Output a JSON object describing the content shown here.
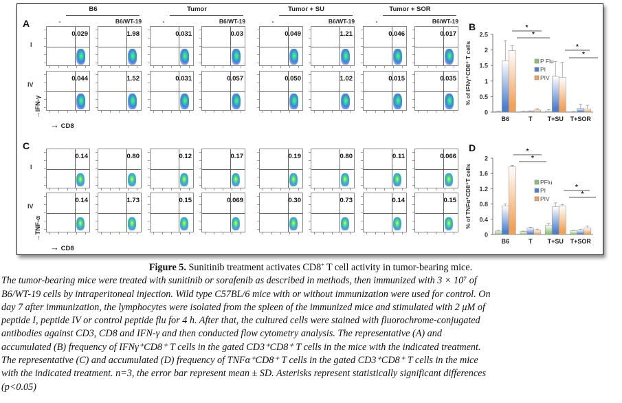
{
  "figure": {
    "panels": {
      "A": "A",
      "B": "B",
      "C": "C",
      "D": "D"
    },
    "groups": [
      {
        "label": "B6",
        "sub": [
          "-",
          "B6/WT-19"
        ]
      },
      {
        "label": "Tumor",
        "sub": [
          "-",
          "B6/WT-19"
        ]
      },
      {
        "label": "Tumor + SU",
        "sub": [
          "-",
          "B6/WT-19"
        ]
      },
      {
        "label": "Tumor + SOR",
        "sub": [
          "-",
          "B6/WT-19"
        ]
      }
    ],
    "row_labels": {
      "peptide_I": "I",
      "peptide_IV": "IV"
    },
    "flow_axes": {
      "x_label": "CD8",
      "y_label_A": "IFN-γ",
      "y_label_C": "TNF-α",
      "arrow": "→"
    },
    "flow_values": {
      "A_I": [
        "0.029",
        "1.98",
        "0.031",
        "0.03",
        "0.049",
        "1.21",
        "0.046",
        "0.017"
      ],
      "A_IV": [
        "0.044",
        "1.52",
        "0.031",
        "0.057",
        "0.050",
        "1.02",
        "0.015",
        "0.035"
      ],
      "C_I": [
        "0.14",
        "0.80",
        "0.12",
        "0.17",
        "0.19",
        "0.80",
        "0.11",
        "0.066"
      ],
      "C_IV": [
        "0.14",
        "1.73",
        "0.15",
        "0.069",
        "0.30",
        "0.73",
        "0.14",
        "0.15"
      ]
    }
  },
  "chart_data": [
    {
      "id": "B",
      "type": "bar",
      "title": "",
      "xlabel": "",
      "ylabel": "% of IFNγ⁺CD8⁺ T cells",
      "categories": [
        "B6",
        "T",
        "T+SU",
        "T+SOR"
      ],
      "ylim": [
        0,
        2.5
      ],
      "yticks": [
        0,
        0.5,
        1,
        1.5,
        2,
        2.5
      ],
      "ytick_labels": [
        "0",
        "0.5",
        "1",
        "1.5",
        "2",
        "2.5"
      ],
      "legend": {
        "placement": "center",
        "entries": [
          "P Flu",
          "PI",
          "PIV"
        ]
      },
      "series": [
        {
          "name": "P Flu",
          "color": "#8cc26a",
          "values": [
            0.02,
            0.02,
            0.03,
            0.01
          ],
          "errors": [
            0.01,
            0.01,
            0.05,
            0.01
          ]
        },
        {
          "name": "PI",
          "color": "#4a7fd0",
          "values": [
            1.65,
            0.03,
            1.15,
            0.12
          ],
          "errors": [
            0.65,
            0.01,
            0.48,
            0.13
          ]
        },
        {
          "name": "PIV",
          "color": "#f5a050",
          "values": [
            1.98,
            0.07,
            1.12,
            0.1
          ],
          "errors": [
            0.16,
            0.04,
            0.48,
            0.12
          ]
        }
      ],
      "significance": [
        {
          "from": "B6",
          "to": "T",
          "label": "*"
        },
        {
          "from": "B6",
          "to": "T",
          "label": "*"
        },
        {
          "from": "T+SU",
          "to": "T+SOR",
          "label": "*"
        },
        {
          "from": "T+SU",
          "to": "T+SOR",
          "label": "*"
        }
      ]
    },
    {
      "id": "D",
      "type": "bar",
      "title": "",
      "xlabel": "",
      "ylabel": "% of TNFα⁺CD8⁺T cells",
      "categories": [
        "B6",
        "T",
        "T+SU",
        "T+SOR"
      ],
      "ylim": [
        0,
        2
      ],
      "yticks": [
        0,
        0.4,
        0.8,
        1.2,
        1.6,
        2
      ],
      "ytick_labels": [
        "0",
        "0.4",
        "0.8",
        "1.2",
        "1.6",
        "2"
      ],
      "legend": {
        "placement": "center",
        "entries": [
          "PFlu",
          "PI",
          "PIV"
        ]
      },
      "series": [
        {
          "name": "PFlu",
          "color": "#8cc26a",
          "values": [
            0.09,
            0.08,
            0.24,
            0.1
          ],
          "errors": [
            0.02,
            0.01,
            0.06,
            0.01
          ]
        },
        {
          "name": "PI",
          "color": "#4a7fd0",
          "values": [
            0.75,
            0.17,
            0.73,
            0.12
          ],
          "errors": [
            0.05,
            0.02,
            0.1,
            0.02
          ]
        },
        {
          "name": "PIV",
          "color": "#f5a050",
          "values": [
            1.77,
            0.11,
            0.75,
            0.17
          ],
          "errors": [
            0.04,
            0.03,
            0.04,
            0.05
          ]
        }
      ],
      "significance": [
        {
          "from": "B6",
          "to": "T",
          "label": "*"
        },
        {
          "from": "B6",
          "to": "T",
          "label": "*"
        },
        {
          "from": "T+SU",
          "to": "T+SOR",
          "label": "*"
        },
        {
          "from": "T+SU",
          "to": "T+SOR",
          "label": "*"
        }
      ]
    }
  ],
  "caption": {
    "title_bold": "Figure 5.",
    "title_rest_1": " Sunitinib treatment activates CD8",
    "title_sup": "+",
    "title_rest_2": " T cell activity in tumor-bearing mice.",
    "lines": [
      "The tumor-bearing mice were treated with sunitinib or sorafenib as described in methods, then immunized with 3 × 10⁷ of",
      "B6/WT-19 cells by intraperitoneal injection. Wild type C57BL/6 mice with or without immunization were used for control. On",
      "day 7 after immunization, the lymphocytes were isolated from the spleen of the immunized mice and stimulated with 2 μM of",
      "peptide I, peptide IV or control peptide flu for 4 h. After that, the cultured cells were stained with fluorochrome-conjugated",
      "antibodies against CD3, CD8 and IFN-γ and then conducted flow cytometry analysis. The representative (A) and",
      "accumulated (B) frequency of IFNγ⁺CD8⁺ T cells in the gated CD3⁺CD8⁺ T cells in the mice with the indicated treatment.",
      "The representative (C) and accumulated (D) frequency of TNFα⁺CD8⁺ T cells in the gated CD3⁺CD8⁺ T cells in the mice",
      "with the indicated treatment. n=3, the error bar represent mean ± SD. Asterisks represent statistically significant differences",
      "(p<0.05)"
    ]
  }
}
